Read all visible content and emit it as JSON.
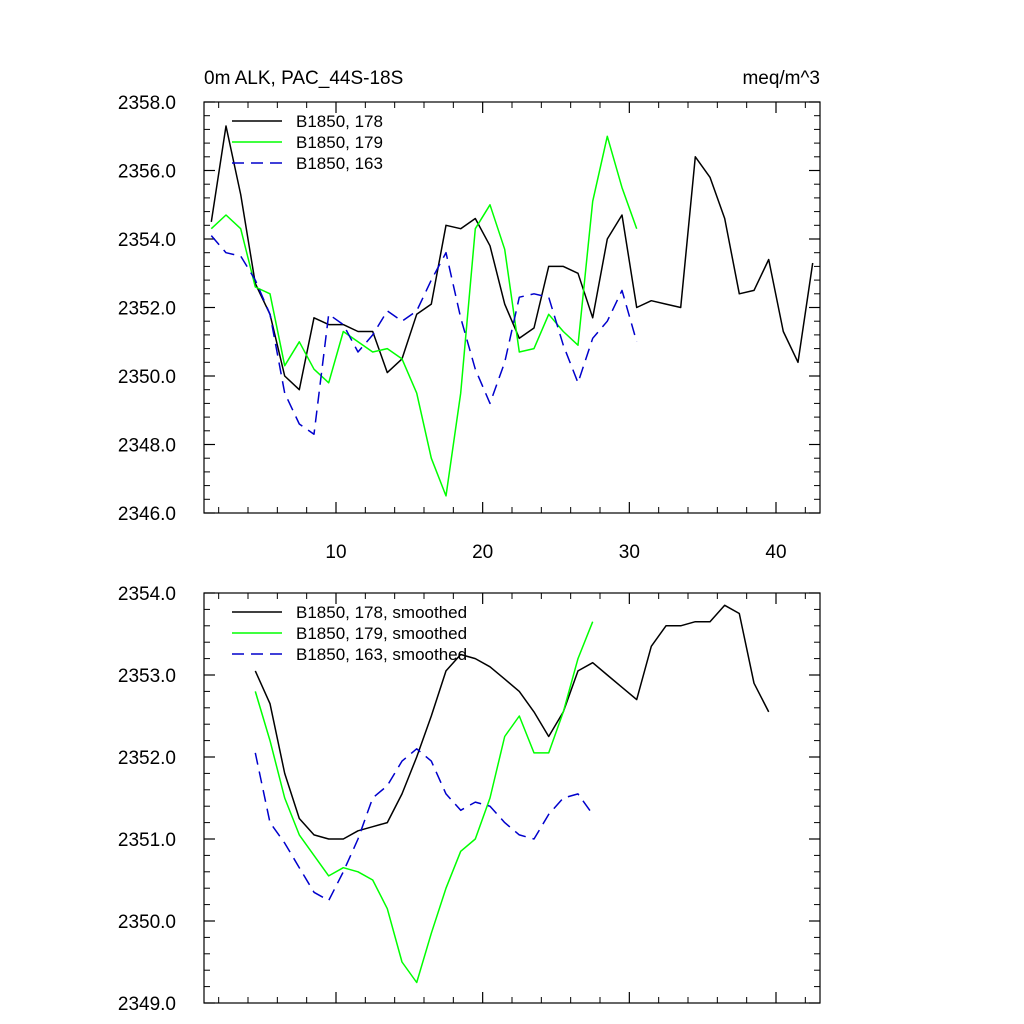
{
  "chart_data": [
    {
      "type": "line",
      "title_left": "0m ALK, PAC_44S-18S",
      "title_right": "meq/m^3",
      "ylim": [
        2346,
        2358
      ],
      "xlim": [
        1,
        43
      ],
      "yticks": [
        2346,
        2348,
        2350,
        2352,
        2354,
        2356,
        2358
      ],
      "ytick_labels": [
        "2346.0",
        "2348.0",
        "2350.0",
        "2352.0",
        "2354.0",
        "2356.0",
        "2358.0"
      ],
      "xticks": [
        10,
        20,
        30,
        40
      ],
      "xtick_labels": [
        "10",
        "20",
        "30",
        "40"
      ],
      "series": [
        {
          "name": "B1850, 178",
          "color": "#000000",
          "dash": "",
          "x": [
            1.5,
            2.5,
            3.5,
            4.5,
            5.5,
            6.5,
            7.5,
            8.5,
            9.5,
            10.5,
            11.5,
            12.5,
            13.5,
            14.5,
            15.5,
            16.5,
            17.5,
            18.5,
            19.5,
            20.5,
            21.5,
            22.5,
            23.5,
            24.5,
            25.5,
            26.5,
            27.5,
            28.5,
            29.5,
            30.5,
            31.5,
            32.5,
            33.5,
            34.5,
            35.5,
            36.5,
            37.5,
            38.5,
            39.5,
            40.5,
            41.5,
            42.5
          ],
          "values": [
            2354.5,
            2357.3,
            2355.3,
            2352.7,
            2351.8,
            2350.0,
            2349.6,
            2351.7,
            2351.5,
            2351.5,
            2351.3,
            2351.3,
            2350.1,
            2350.5,
            2351.8,
            2352.1,
            2354.4,
            2354.3,
            2354.6,
            2353.8,
            2352.1,
            2351.1,
            2351.4,
            2353.2,
            2353.2,
            2353.0,
            2351.7,
            2354.0,
            2354.7,
            2352.0,
            2352.2,
            2352.1,
            2352.0,
            2356.4,
            2355.8,
            2354.6,
            2352.4,
            2352.5,
            2353.4,
            2351.3,
            2350.4,
            2353.3
          ]
        },
        {
          "name": "B1850, 179",
          "color": "#00ff00",
          "dash": "",
          "x": [
            1.5,
            2.5,
            3.5,
            4.5,
            5.5,
            6.5,
            7.5,
            8.5,
            9.5,
            10.5,
            11.5,
            12.5,
            13.5,
            14.5,
            15.5,
            16.5,
            17.5,
            18.5,
            19.5,
            20.5,
            21.5,
            22.5,
            23.5,
            24.5,
            25.5,
            26.5,
            27.5,
            28.5,
            29.5,
            30.5
          ],
          "values": [
            2354.3,
            2354.7,
            2354.3,
            2352.6,
            2352.4,
            2350.3,
            2351.0,
            2350.2,
            2349.8,
            2351.3,
            2351.0,
            2350.7,
            2350.8,
            2350.5,
            2349.5,
            2347.6,
            2346.5,
            2349.5,
            2354.3,
            2355.0,
            2353.7,
            2350.7,
            2350.8,
            2351.8,
            2351.3,
            2350.9,
            2355.1,
            2357.0,
            2355.5,
            2354.3
          ]
        },
        {
          "name": "B1850, 163",
          "color": "#0000cc",
          "dash": "12,7",
          "x": [
            1.5,
            2.5,
            3.5,
            4.5,
            5.5,
            6.5,
            7.5,
            8.5,
            9.5,
            10.5,
            11.5,
            12.5,
            13.5,
            14.5,
            15.5,
            16.5,
            17.5,
            18.5,
            19.5,
            20.5,
            21.5,
            22.5,
            23.5,
            24.5,
            25.5,
            26.5,
            27.5,
            28.5,
            29.5,
            30.5
          ],
          "values": [
            2354.1,
            2353.6,
            2353.5,
            2352.8,
            2351.8,
            2349.5,
            2348.6,
            2348.3,
            2351.8,
            2351.5,
            2350.7,
            2351.2,
            2351.9,
            2351.6,
            2351.9,
            2352.8,
            2353.6,
            2351.7,
            2350.2,
            2349.2,
            2350.4,
            2352.3,
            2352.4,
            2352.3,
            2350.9,
            2349.8,
            2351.1,
            2351.6,
            2352.5,
            2351.0
          ]
        }
      ]
    },
    {
      "type": "line",
      "ylim": [
        2349,
        2354
      ],
      "xlim": [
        1,
        43
      ],
      "yticks": [
        2349,
        2350,
        2351,
        2352,
        2353,
        2354
      ],
      "ytick_labels": [
        "2349.0",
        "2350.0",
        "2351.0",
        "2352.0",
        "2353.0",
        "2354.0"
      ],
      "xticks": [
        10,
        20,
        30,
        40
      ],
      "series": [
        {
          "name": "B1850, 178, smoothed",
          "color": "#000000",
          "dash": "",
          "x": [
            4.5,
            5.5,
            6.5,
            7.5,
            8.5,
            9.5,
            10.5,
            11.5,
            12.5,
            13.5,
            14.5,
            15.5,
            16.5,
            17.5,
            18.5,
            19.5,
            20.5,
            21.5,
            22.5,
            23.5,
            24.5,
            25.5,
            26.5,
            27.5,
            28.5,
            29.5,
            30.5,
            31.5,
            32.5,
            33.5,
            34.5,
            35.5,
            36.5,
            37.5,
            38.5,
            39.5
          ],
          "values": [
            2353.05,
            2352.65,
            2351.8,
            2351.25,
            2351.05,
            2351.0,
            2351.0,
            2351.1,
            2351.15,
            2351.2,
            2351.55,
            2352.0,
            2352.5,
            2353.05,
            2353.25,
            2353.2,
            2353.1,
            2352.95,
            2352.8,
            2352.55,
            2352.25,
            2352.55,
            2353.05,
            2353.15,
            2353.0,
            2352.85,
            2352.7,
            2353.35,
            2353.6,
            2353.6,
            2353.65,
            2353.65,
            2353.85,
            2353.75,
            2352.9,
            2352.55
          ]
        },
        {
          "name": "B1850, 179, smoothed",
          "color": "#00ff00",
          "dash": "",
          "x": [
            4.5,
            5.5,
            6.5,
            7.5,
            8.5,
            9.5,
            10.5,
            11.5,
            12.5,
            13.5,
            14.5,
            15.5,
            16.5,
            17.5,
            18.5,
            19.5,
            20.5,
            21.5,
            22.5,
            23.5,
            24.5,
            25.5,
            26.5,
            27.5
          ],
          "values": [
            2352.8,
            2352.2,
            2351.5,
            2351.05,
            2350.8,
            2350.55,
            2350.65,
            2350.6,
            2350.5,
            2350.15,
            2349.5,
            2349.25,
            2349.85,
            2350.4,
            2350.85,
            2351.0,
            2351.5,
            2352.25,
            2352.5,
            2352.05,
            2352.05,
            2352.55,
            2353.2,
            2353.65
          ]
        },
        {
          "name": "B1850, 163, smoothed",
          "color": "#0000cc",
          "dash": "12,7",
          "x": [
            4.5,
            5.5,
            6.5,
            7.5,
            8.5,
            9.5,
            10.5,
            11.5,
            12.5,
            13.5,
            14.5,
            15.5,
            16.5,
            17.5,
            18.5,
            19.5,
            20.5,
            21.5,
            22.5,
            23.5,
            24.5,
            25.5,
            26.5,
            27.5
          ],
          "values": [
            2352.05,
            2351.2,
            2350.95,
            2350.65,
            2350.35,
            2350.25,
            2350.6,
            2351.0,
            2351.5,
            2351.65,
            2351.95,
            2352.1,
            2351.95,
            2351.55,
            2351.35,
            2351.45,
            2351.4,
            2351.2,
            2351.05,
            2351.0,
            2351.3,
            2351.5,
            2351.55,
            2351.3
          ]
        }
      ]
    }
  ]
}
